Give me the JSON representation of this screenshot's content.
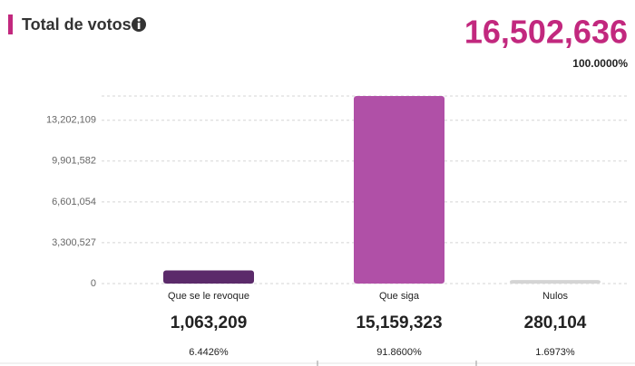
{
  "chart_data": {
    "type": "bar",
    "title": "Total de votos",
    "total": 16502636,
    "total_label": "16,502,636",
    "total_share": 100,
    "total_share_label": "100.0000%",
    "categories": [
      "Que se le revoque",
      "Que siga",
      "Nulos"
    ],
    "values": [
      1063209,
      15159323,
      280104
    ],
    "value_labels": [
      "1,063,209",
      "15,159,323",
      "280,104"
    ],
    "shares": [
      6.4426,
      91.86,
      1.6973
    ],
    "share_labels": [
      "6.4426%",
      "91.8600%",
      "1.6973%"
    ],
    "colors": [
      "#5b2a6a",
      "#b050a7",
      "#d4d4d4"
    ],
    "ylim": [
      0,
      15159323
    ],
    "yticks": [
      0,
      {
        "value": 3300527,
        "label": "3,300,527"
      },
      {
        "value": 6601054,
        "label": "6,601,054"
      },
      {
        "value": 9901582,
        "label": "9,901,582"
      },
      {
        "value": 13202109,
        "label": "13,202,109"
      }
    ],
    "grid": true
  }
}
